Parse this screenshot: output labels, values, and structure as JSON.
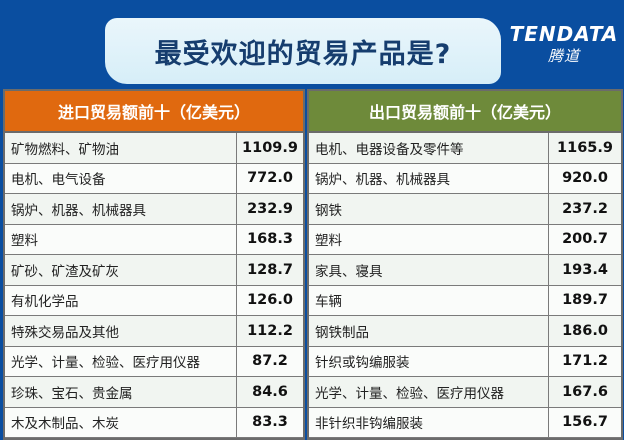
{
  "title": "最受欢迎的贸易产品是?",
  "import": {
    "header": "进口贸易额前十（亿美元）",
    "rows": [
      {
        "name": "矿物燃料、矿物油",
        "value": "1109.9"
      },
      {
        "name": "电机、电气设备",
        "value": "772.0"
      },
      {
        "name": "锅炉、机器、机械器具",
        "value": "232.9"
      },
      {
        "name": "塑料",
        "value": "168.3"
      },
      {
        "name": "矿砂、矿渣及矿灰",
        "value": "128.7"
      },
      {
        "name": "有机化学品",
        "value": "126.0"
      },
      {
        "name": "特殊交易品及其他",
        "value": "112.2"
      },
      {
        "name": "光学、计量、检验、医疗用仪器",
        "value": "87.2"
      },
      {
        "name": "珍珠、宝石、贵金属",
        "value": "84.6"
      },
      {
        "name": "木及木制品、木炭",
        "value": "83.3"
      }
    ]
  },
  "export": {
    "header": "出口贸易额前十（亿美元）",
    "rows": [
      {
        "name": "电机、电器设备及零件等",
        "value": "1165.9"
      },
      {
        "name": "锅炉、机器、机械器具",
        "value": "920.0"
      },
      {
        "name": "钢铁",
        "value": "237.2"
      },
      {
        "name": "塑料",
        "value": "200.7"
      },
      {
        "name": "家具、寝具",
        "value": "193.4"
      },
      {
        "name": "车辆",
        "value": "189.7"
      },
      {
        "name": "钢铁制品",
        "value": "186.0"
      },
      {
        "name": "针织或钩编服装",
        "value": "171.2"
      },
      {
        "name": "光学、计量、检验、医疗用仪器",
        "value": "167.6"
      },
      {
        "name": "非针织非钩编服装",
        "value": "156.7"
      }
    ]
  },
  "logo": {
    "text": "TENDATA",
    "cn": "腾道"
  }
}
